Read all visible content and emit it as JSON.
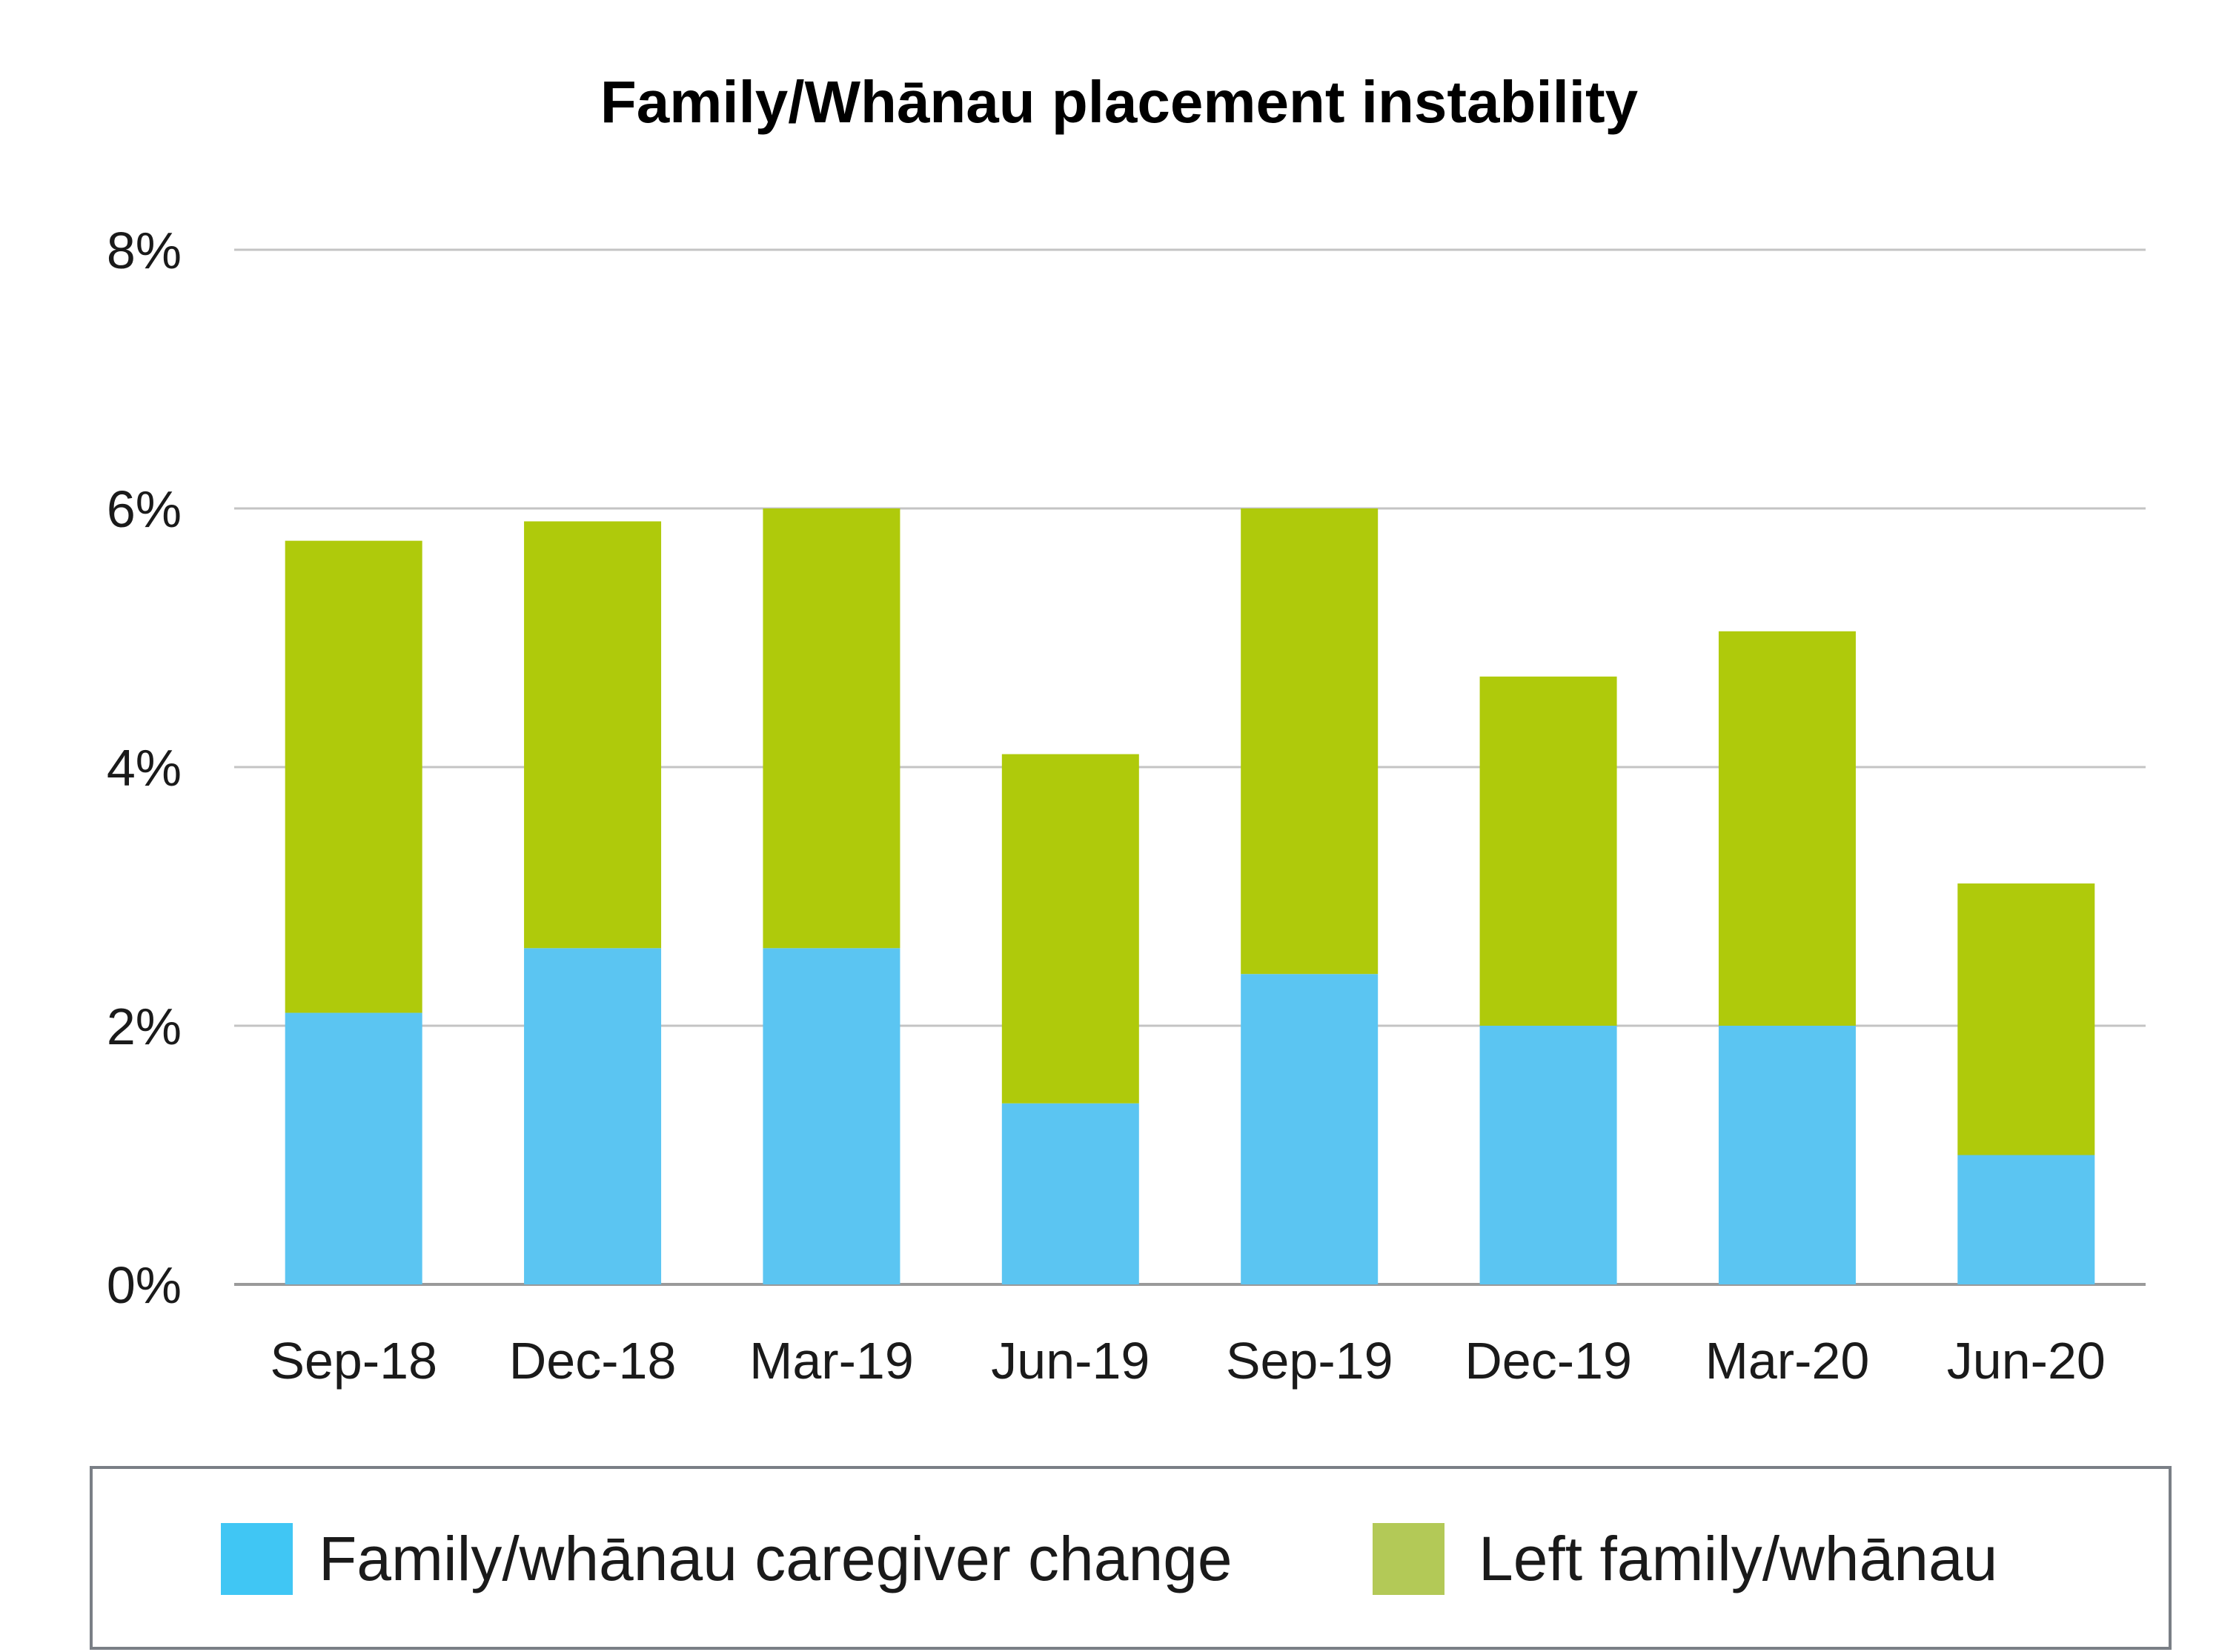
{
  "chart_data": {
    "type": "bar",
    "stacked": true,
    "title": "Family/Whānau placement instability",
    "xlabel": "",
    "ylabel": "",
    "categories": [
      "Sep-18",
      "Dec-18",
      "Mar-19",
      "Jun-19",
      "Sep-19",
      "Dec-19",
      "Mar-20",
      "Jun-20"
    ],
    "series": [
      {
        "name": "Family/whānau caregiver change",
        "color": "#5bc5f2",
        "values": [
          2.1,
          2.6,
          2.6,
          1.4,
          2.4,
          2.0,
          2.0,
          1.0
        ]
      },
      {
        "name": "Left family/whānau",
        "color": "#afca0b",
        "values": [
          3.65,
          3.3,
          3.4,
          2.7,
          3.6,
          2.7,
          3.05,
          2.1
        ]
      }
    ],
    "ylim": [
      0,
      8
    ],
    "yticks": [
      0,
      2,
      4,
      6,
      8
    ],
    "ytick_labels": [
      "0%",
      "2%",
      "4%",
      "6%",
      "8%"
    ],
    "grid": true,
    "legend": {
      "placement": "bottom",
      "swatch_colors": [
        "#40c6f4",
        "#b3c957"
      ]
    }
  }
}
